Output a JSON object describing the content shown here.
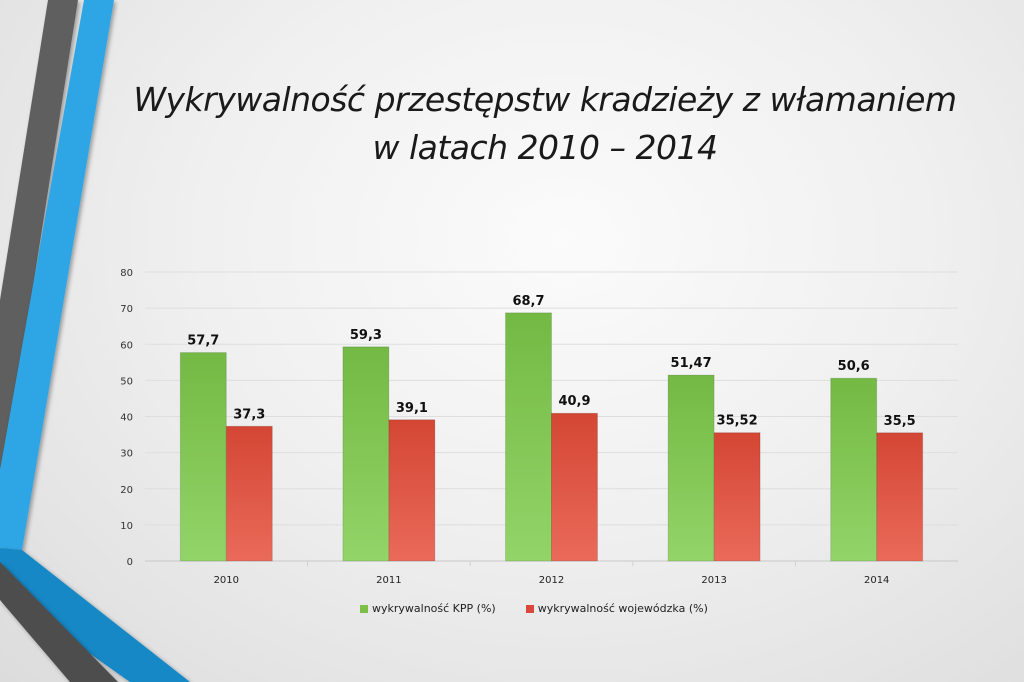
{
  "slide": {
    "title_line1": "Wykrywalność przestępstw kradzieży z włamaniem",
    "title_line2": "w latach 2010 – 2014"
  },
  "colors": {
    "kpp": "#7cc04a",
    "wojewodzka": "#d9483a",
    "accent_blue": "#2ea6e6",
    "accent_dark_blue": "#1688c6",
    "accent_gray": "#5a5a5a"
  },
  "legend": {
    "items": [
      {
        "label": "wykrywalność KPP (%)",
        "color": "#7cc04a"
      },
      {
        "label": "wykrywalność wojewódzka (%)",
        "color": "#d9483a"
      }
    ]
  },
  "chart_data": {
    "type": "bar",
    "title": "Wykrywalność przestępstw kradzieży z włamaniem w latach 2010 – 2014",
    "categories": [
      "2010",
      "2011",
      "2012",
      "2013",
      "2014"
    ],
    "series": [
      {
        "name": "wykrywalność KPP (%)",
        "values": [
          57.7,
          59.3,
          68.7,
          51.47,
          50.6
        ],
        "labels": [
          "57,7",
          "59,3",
          "68,7",
          "51,47",
          "50,6"
        ]
      },
      {
        "name": "wykrywalność wojewódzka (%)",
        "values": [
          37.3,
          39.1,
          40.9,
          35.52,
          35.5
        ],
        "labels": [
          "37,3",
          "39,1",
          "40,9",
          "35,52",
          "35,5"
        ]
      }
    ],
    "xlabel": "",
    "ylabel": "",
    "ylim": [
      0,
      80
    ],
    "yticks": [
      0,
      10,
      20,
      30,
      40,
      50,
      60,
      70,
      80
    ],
    "grid": true,
    "legend_position": "bottom"
  }
}
